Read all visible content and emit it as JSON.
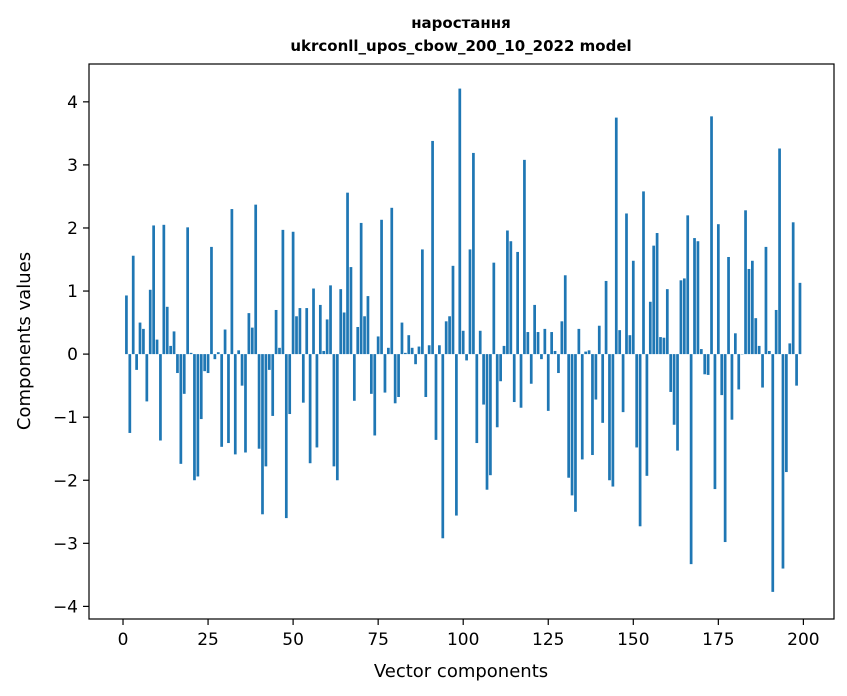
{
  "chart_data": {
    "type": "bar",
    "title_line1": "наростання",
    "title_line2": "ukrconll_upos_cbow_200_10_2022 model",
    "xlabel": "Vector components",
    "ylabel": "Components values",
    "xlim": [
      -10,
      209
    ],
    "ylim": [
      -4.2,
      4.6
    ],
    "xticks": [
      0,
      25,
      50,
      75,
      100,
      125,
      150,
      175,
      200
    ],
    "xtick_labels": [
      "0",
      "25",
      "50",
      "75",
      "100",
      "125",
      "150",
      "175",
      "200"
    ],
    "yticks": [
      -4,
      -3,
      -2,
      -1,
      0,
      1,
      2,
      3,
      4
    ],
    "ytick_labels": [
      "−4",
      "−3",
      "−2",
      "−1",
      "0",
      "1",
      "2",
      "3",
      "4"
    ],
    "grid": false,
    "bar_color": "#1f77b4",
    "x": [
      1,
      2,
      3,
      4,
      5,
      6,
      7,
      8,
      9,
      10,
      11,
      12,
      13,
      14,
      15,
      16,
      17,
      18,
      19,
      20,
      21,
      22,
      23,
      24,
      25,
      26,
      27,
      28,
      29,
      30,
      31,
      32,
      33,
      34,
      35,
      36,
      37,
      38,
      39,
      40,
      41,
      42,
      43,
      44,
      45,
      46,
      47,
      48,
      49,
      50,
      51,
      52,
      53,
      54,
      55,
      56,
      57,
      58,
      59,
      60,
      61,
      62,
      63,
      64,
      65,
      66,
      67,
      68,
      69,
      70,
      71,
      72,
      73,
      74,
      75,
      76,
      77,
      78,
      79,
      80,
      81,
      82,
      83,
      84,
      85,
      86,
      87,
      88,
      89,
      90,
      91,
      92,
      93,
      94,
      95,
      96,
      97,
      98,
      99,
      100,
      101,
      102,
      103,
      104,
      105,
      106,
      107,
      108,
      109,
      110,
      111,
      112,
      113,
      114,
      115,
      116,
      117,
      118,
      119,
      120,
      121,
      122,
      123,
      124,
      125,
      126,
      127,
      128,
      129,
      130,
      131,
      132,
      133,
      134,
      135,
      136,
      137,
      138,
      139,
      140,
      141,
      142,
      143,
      144,
      145,
      146,
      147,
      148,
      149,
      150,
      151,
      152,
      153,
      154,
      155,
      156,
      157,
      158,
      159,
      160,
      161,
      162,
      163,
      164,
      165,
      166,
      167,
      168,
      169,
      170,
      171,
      172,
      173,
      174,
      175,
      176,
      177,
      178,
      179,
      180,
      181,
      182,
      183,
      184,
      185,
      186,
      187,
      188,
      189,
      190,
      191,
      192,
      193,
      194,
      195,
      196,
      197,
      198,
      199
    ],
    "values": [
      0.93,
      -1.25,
      1.56,
      -0.25,
      0.5,
      0.4,
      -0.75,
      1.02,
      2.04,
      0.23,
      -1.37,
      2.05,
      0.75,
      0.13,
      0.36,
      -0.3,
      -1.74,
      -0.63,
      2.01,
      0.02,
      -2.0,
      -1.94,
      -1.03,
      -0.27,
      -0.3,
      1.7,
      -0.08,
      0.03,
      -1.47,
      0.39,
      -1.41,
      2.3,
      -1.59,
      0.06,
      -0.5,
      -1.56,
      0.65,
      0.42,
      2.37,
      -1.5,
      -2.54,
      -1.78,
      -0.25,
      -0.98,
      0.7,
      0.1,
      1.97,
      -2.6,
      -0.95,
      1.94,
      0.6,
      0.73,
      -0.77,
      0.73,
      -1.73,
      1.04,
      -1.48,
      0.78,
      0.05,
      0.55,
      1.09,
      -1.78,
      -2.0,
      1.03,
      0.66,
      2.56,
      1.38,
      -0.74,
      0.43,
      2.08,
      0.6,
      0.92,
      -0.63,
      -1.29,
      0.28,
      2.13,
      -0.61,
      0.1,
      2.32,
      -0.78,
      -0.68,
      0.5,
      0.02,
      0.3,
      0.1,
      -0.16,
      0.12,
      1.66,
      -0.68,
      0.14,
      3.38,
      -1.36,
      0.14,
      -2.92,
      0.52,
      0.6,
      1.4,
      -2.56,
      4.21,
      0.37,
      -0.1,
      1.66,
      3.19,
      -1.41,
      0.37,
      -0.8,
      -2.15,
      -1.92,
      1.45,
      -1.16,
      -0.43,
      0.13,
      1.96,
      1.79,
      -0.76,
      1.62,
      -0.85,
      3.08,
      0.35,
      -0.47,
      0.78,
      0.35,
      -0.08,
      0.4,
      -0.9,
      0.35,
      0.05,
      -0.3,
      0.52,
      1.25,
      -1.96,
      -2.24,
      -2.5,
      0.4,
      -1.67,
      0.04,
      0.06,
      -1.6,
      -0.72,
      0.45,
      -1.09,
      1.16,
      -2.0,
      -2.1,
      3.75,
      0.38,
      -0.92,
      2.23,
      0.3,
      1.48,
      -1.48,
      -2.73,
      2.58,
      -1.93,
      0.83,
      1.72,
      1.92,
      0.27,
      0.26,
      1.03,
      -0.6,
      -1.12,
      -1.53,
      1.17,
      1.2,
      2.2,
      -3.33,
      1.84,
      1.79,
      0.08,
      -0.32,
      -0.33,
      3.77,
      -2.14,
      2.06,
      -0.65,
      -2.98,
      1.54,
      -1.04,
      0.33,
      -0.56,
      0.0,
      2.28,
      1.35,
      1.48,
      0.57,
      0.13,
      -0.53,
      1.7,
      0.05,
      -3.77,
      0.7,
      3.26,
      -3.4,
      -1.87,
      0.17,
      2.09,
      -0.5,
      1.13
    ]
  }
}
